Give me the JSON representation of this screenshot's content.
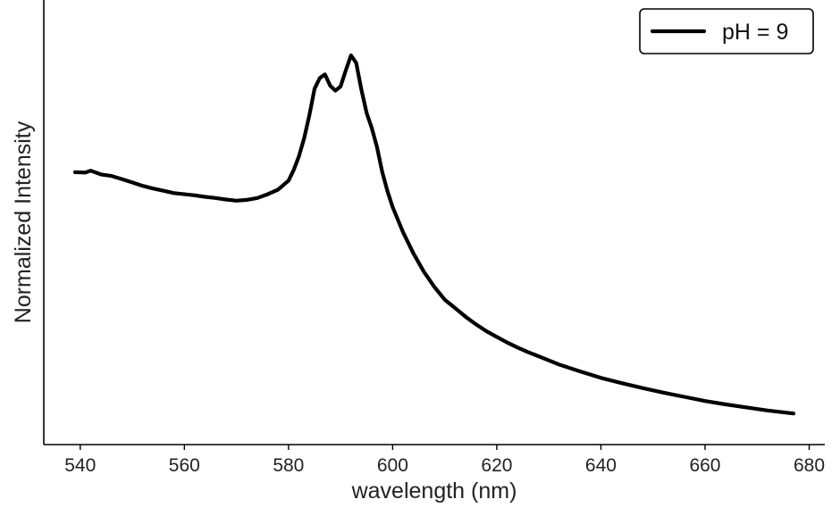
{
  "chart_data": {
    "type": "line",
    "xlabel": "wavelength (nm)",
    "ylabel": "Normalized Intensity",
    "xlim": [
      533,
      683
    ],
    "ylim": [
      0,
      1
    ],
    "x_ticks": [
      540,
      560,
      580,
      600,
      620,
      640,
      660,
      680
    ],
    "y_ticks_shown": false,
    "grid": false,
    "legend": {
      "position": "top-right"
    },
    "series": [
      {
        "name": "pH = 9",
        "color": "#000000",
        "x": [
          539,
          541,
          542,
          544,
          546,
          548,
          550,
          552,
          554,
          556,
          558,
          560,
          562,
          564,
          566,
          568,
          570,
          572,
          574,
          576,
          578,
          580,
          581,
          582,
          583,
          584,
          585,
          586,
          587,
          588,
          589,
          590,
          591,
          592,
          593,
          594,
          595,
          596,
          597,
          598,
          599,
          600,
          601,
          602,
          604,
          606,
          608,
          610,
          612,
          614,
          616,
          618,
          620,
          622,
          624,
          626,
          628,
          630,
          632,
          636,
          640,
          644,
          648,
          652,
          656,
          660,
          664,
          668,
          672,
          677
        ],
        "values": [
          0.652,
          0.651,
          0.656,
          0.646,
          0.642,
          0.634,
          0.625,
          0.616,
          0.609,
          0.603,
          0.597,
          0.594,
          0.591,
          0.587,
          0.584,
          0.58,
          0.577,
          0.579,
          0.584,
          0.594,
          0.606,
          0.63,
          0.658,
          0.694,
          0.741,
          0.802,
          0.872,
          0.9,
          0.91,
          0.88,
          0.867,
          0.878,
          0.92,
          0.96,
          0.94,
          0.87,
          0.808,
          0.768,
          0.718,
          0.653,
          0.602,
          0.56,
          0.527,
          0.494,
          0.438,
          0.39,
          0.35,
          0.316,
          0.294,
          0.271,
          0.251,
          0.233,
          0.218,
          0.203,
          0.19,
          0.178,
          0.167,
          0.156,
          0.145,
          0.127,
          0.11,
          0.096,
          0.083,
          0.071,
          0.06,
          0.049,
          0.04,
          0.032,
          0.024,
          0.016
        ]
      }
    ]
  }
}
